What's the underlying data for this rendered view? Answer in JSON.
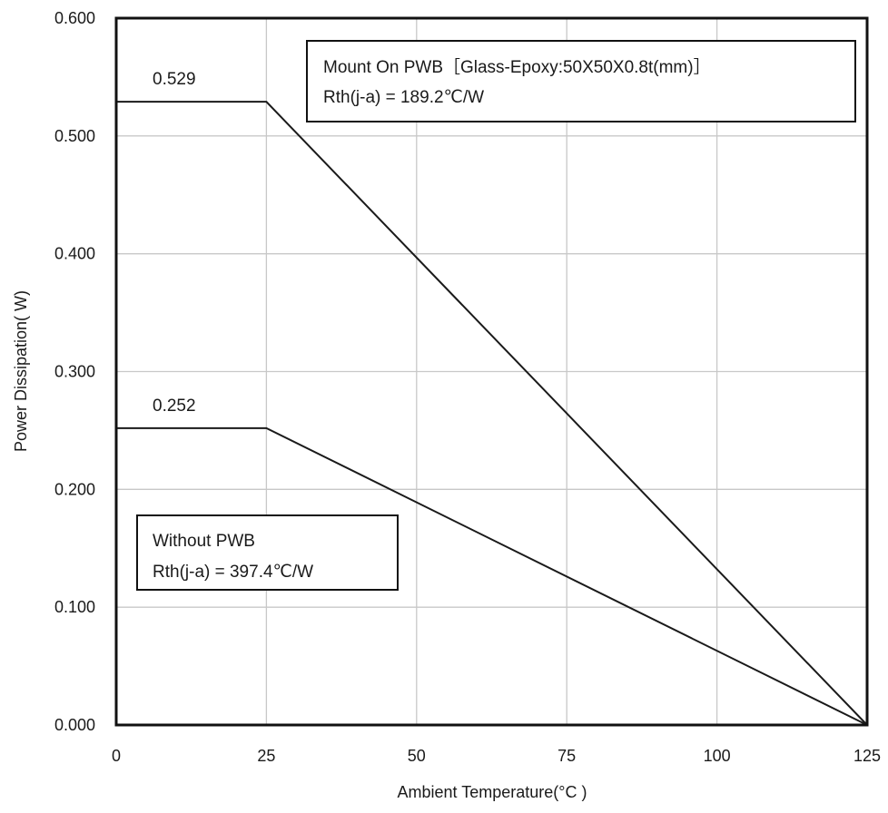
{
  "chart_data": {
    "type": "line",
    "title": "",
    "xlabel": "Ambient Temperature(°C )",
    "ylabel": "Power Dissipation( W)",
    "xlim": [
      0,
      125
    ],
    "ylim": [
      0,
      0.6
    ],
    "x_ticks": [
      "0",
      "25",
      "50",
      "75",
      "100",
      "125"
    ],
    "y_ticks": [
      "0.000",
      "0.100",
      "0.200",
      "0.300",
      "0.400",
      "0.500",
      "0.600"
    ],
    "grid": true,
    "series": [
      {
        "x": [
          0,
          25,
          125
        ],
        "y": [
          0.529,
          0.529,
          0
        ],
        "point_label": "0.529"
      },
      {
        "x": [
          0,
          25,
          125
        ],
        "y": [
          0.252,
          0.252,
          0
        ],
        "point_label": "0.252"
      }
    ],
    "annotations": [
      {
        "line1": "Mount On PWB［Glass-Epoxy:50X50X0.8t(mm)］",
        "line2": "Rth(j-a) = 189.2℃/W"
      },
      {
        "line1": "Without PWB",
        "line2": "Rth(j-a) = 397.4℃/W"
      }
    ],
    "colors": {
      "line": "#1a1a1a",
      "grid": "#c8c8c8",
      "frame": "#111111"
    }
  }
}
